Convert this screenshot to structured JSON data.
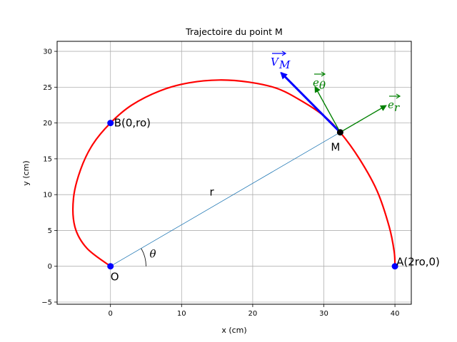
{
  "chart_data": {
    "type": "line",
    "title": "Trajectoire du point M",
    "xlabel": "x (cm)",
    "ylabel": "y (cm)",
    "xlim": [
      -7.5,
      42.3
    ],
    "ylim": [
      -5.3,
      31.4
    ],
    "xticks": [
      0,
      10,
      20,
      30,
      40
    ],
    "yticks": [
      -5,
      0,
      5,
      10,
      15,
      20,
      25,
      30
    ],
    "grid": true,
    "curve": {
      "color": "#ff0000",
      "points": [
        [
          0,
          0
        ],
        [
          -3.3,
          2.5
        ],
        [
          -5.0,
          5.5
        ],
        [
          -5.2,
          9.5
        ],
        [
          -4.2,
          13.5
        ],
        [
          -2.5,
          17.0
        ],
        [
          0,
          20
        ],
        [
          3.0,
          22.5
        ],
        [
          7.0,
          24.5
        ],
        [
          11.0,
          25.6
        ],
        [
          15.3,
          26.0
        ],
        [
          19.5,
          25.7
        ],
        [
          23.5,
          24.8
        ],
        [
          27.0,
          23.0
        ],
        [
          30.0,
          21.0
        ],
        [
          32.3,
          18.7
        ],
        [
          35.0,
          15.0
        ],
        [
          37.5,
          10.5
        ],
        [
          39.2,
          5.5
        ],
        [
          39.9,
          2.0
        ],
        [
          40,
          0
        ]
      ]
    },
    "points": [
      {
        "name": "O",
        "label": "O",
        "x": 0,
        "y": 0,
        "color": "#0000ff"
      },
      {
        "name": "B",
        "label": "B(0,ro)",
        "x": 0,
        "y": 20,
        "color": "#0000ff"
      },
      {
        "name": "A",
        "label": "A(2ro,0)",
        "x": 40,
        "y": 0,
        "color": "#0000ff"
      },
      {
        "name": "M",
        "label": "M",
        "x": 32.3,
        "y": 18.7,
        "color": "#000000"
      }
    ],
    "radius_line": {
      "label": "r",
      "from": [
        0,
        0
      ],
      "to": [
        32.3,
        18.7
      ],
      "color": "#1f77b4"
    },
    "angle_label": "θ",
    "vectors": [
      {
        "name": "V_M",
        "label_main": "V",
        "label_sub": "M",
        "from": [
          32.3,
          18.7
        ],
        "to": [
          24.0,
          27.0
        ],
        "color": "#0000ff"
      },
      {
        "name": "e_theta",
        "label_main": "e",
        "label_sub": "θ",
        "from": [
          32.3,
          18.7
        ],
        "to": [
          28.8,
          25.0
        ],
        "color": "#008000"
      },
      {
        "name": "e_r",
        "label_main": "e",
        "label_sub": "r",
        "from": [
          32.3,
          18.7
        ],
        "to": [
          38.7,
          22.4
        ],
        "color": "#008000"
      }
    ]
  }
}
